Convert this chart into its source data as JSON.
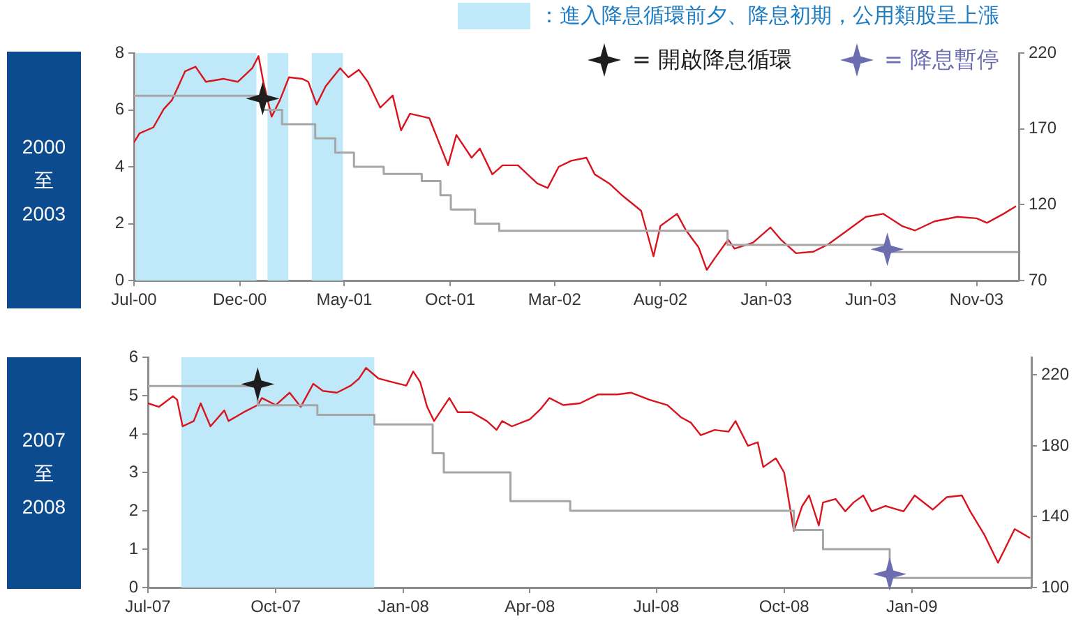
{
  "chart_data": [
    {
      "type": "line",
      "title": "2000 至 2003",
      "xlim": [
        "2000-07-01",
        "2004-01-01"
      ],
      "xticks": [
        {
          "value": "2000-07",
          "label": "Jul-00"
        },
        {
          "value": "2000-12",
          "label": "Dec-00"
        },
        {
          "value": "2001-05",
          "label": "May-01"
        },
        {
          "value": "2001-10",
          "label": "Oct-01"
        },
        {
          "value": "2002-03",
          "label": "Mar-02"
        },
        {
          "value": "2002-08",
          "label": "Aug-02"
        },
        {
          "value": "2003-01",
          "label": "Jan-03"
        },
        {
          "value": "2003-06",
          "label": "Jun-03"
        },
        {
          "value": "2003-11",
          "label": "Nov-03"
        }
      ],
      "ylim": [
        0,
        8
      ],
      "yticks": [
        0,
        2,
        4,
        6,
        8
      ],
      "y2lim": [
        70,
        220
      ],
      "y2ticks": [
        70,
        120,
        170,
        220
      ],
      "legend": "top right",
      "bands": [
        {
          "axis": "x",
          "from": "2000-07-04",
          "to": "2000-12-25",
          "color": "#bfe9f8",
          "label": "：進入降息循環前夕、降息初期，公用類股呈上漲"
        },
        {
          "axis": "x",
          "from": "2001-01-10",
          "to": "2001-02-09",
          "color": "#bfe9f8"
        },
        {
          "axis": "x",
          "from": "2001-03-15",
          "to": "2001-04-29",
          "color": "#bfe9f8"
        }
      ],
      "series": [
        {
          "type": "step",
          "color": "#a6a6a6",
          "x": [
            "2000-07-01",
            "2001-01-03",
            "2001-01-31",
            "2001-03-20",
            "2001-04-18",
            "2001-05-15",
            "2001-06-27",
            "2001-08-21",
            "2001-09-17",
            "2001-10-02",
            "2001-11-06",
            "2001-12-11",
            "2002-11-06",
            "2003-06-25",
            "2003-12-31"
          ],
          "values": [
            6.5,
            6.0,
            5.5,
            5.0,
            4.5,
            4.0,
            3.75,
            3.5,
            3.0,
            2.5,
            2.0,
            1.75,
            1.25,
            1.0,
            1.0
          ]
        },
        {
          "type": "line",
          "color": "#d9141e",
          "axis": "y2",
          "x": [
            "2000-07-01",
            "2000-07-09",
            "2000-07-29",
            "2000-08-13",
            "2000-08-25",
            "2000-09-13",
            "2000-09-28",
            "2000-10-13",
            "2000-11-07",
            "2000-11-28",
            "2000-12-19",
            "2000-12-28",
            "2001-01-04",
            "2001-01-16",
            "2001-01-28",
            "2001-02-10",
            "2001-03-01",
            "2001-03-10",
            "2001-03-22",
            "2001-04-04",
            "2001-04-25",
            "2001-05-07",
            "2001-05-22",
            "2001-06-04",
            "2001-06-22",
            "2001-07-10",
            "2001-07-22",
            "2001-08-04",
            "2001-09-01",
            "2001-09-28",
            "2001-10-10",
            "2001-11-01",
            "2001-11-13",
            "2001-12-01",
            "2001-12-16",
            "2002-01-07",
            "2002-02-04",
            "2002-02-19",
            "2002-03-07",
            "2002-03-25",
            "2002-04-16",
            "2002-04-28",
            "2002-05-19",
            "2002-06-07",
            "2002-07-04",
            "2002-07-22",
            "2002-08-01",
            "2002-08-25",
            "2002-09-07",
            "2002-09-25",
            "2002-10-07",
            "2002-10-19",
            "2002-11-07",
            "2002-11-16",
            "2002-12-13",
            "2003-01-07",
            "2003-01-22",
            "2003-02-13",
            "2003-03-10",
            "2003-04-01",
            "2003-04-25",
            "2003-05-25",
            "2003-06-19",
            "2003-07-16",
            "2003-08-04",
            "2003-09-01",
            "2003-10-04",
            "2003-11-01",
            "2003-11-16",
            "2003-12-10",
            "2003-12-28"
          ],
          "values": [
            161,
            167,
            171,
            183,
            189,
            208,
            211,
            201,
            203,
            201,
            210,
            218,
            201,
            178,
            189,
            204,
            203,
            201,
            186,
            198,
            210,
            204,
            209,
            201,
            184,
            192,
            169,
            180,
            177,
            146,
            166,
            151,
            157,
            140,
            146,
            146,
            134,
            131,
            145,
            149,
            151,
            140,
            134,
            126,
            116,
            86,
            106,
            114,
            103,
            92,
            77,
            85,
            97,
            91,
            95,
            105,
            97,
            88,
            89,
            94,
            102,
            112,
            114,
            106,
            103,
            109,
            112,
            111,
            108,
            114,
            119
          ]
        },
        {
          "type": "scatter",
          "name": "= 開啟降息循環",
          "color": "#1e1e1e",
          "marker": "star",
          "x": [
            "2001-01-03"
          ],
          "values": [
            6.4
          ]
        },
        {
          "type": "scatter",
          "name": "= 降息暫停",
          "color": "#6c6cb0",
          "marker": "star",
          "x": [
            "2003-06-25"
          ],
          "values": [
            1.1
          ]
        }
      ]
    },
    {
      "type": "line",
      "title": "2007 至 2008",
      "xlim": [
        "2007-07-01",
        "2009-03-28"
      ],
      "xticks": [
        {
          "value": "2007-07",
          "label": "Jul-07"
        },
        {
          "value": "2007-10",
          "label": "Oct-07"
        },
        {
          "value": "2008-01",
          "label": "Jan-08"
        },
        {
          "value": "2008-04",
          "label": "Apr-08"
        },
        {
          "value": "2008-07",
          "label": "Jul-08"
        },
        {
          "value": "2008-10",
          "label": "Oct-08"
        },
        {
          "value": "2009-01",
          "label": "Jan-09"
        }
      ],
      "ylim": [
        0,
        6
      ],
      "yticks": [
        0,
        1,
        2,
        3,
        4,
        5,
        6
      ],
      "y2lim": [
        100,
        230
      ],
      "y2ticks": [
        100,
        140,
        180,
        220
      ],
      "bands": [
        {
          "axis": "x",
          "from": "2007-07-25",
          "to": "2007-12-11",
          "color": "#bfe9f8"
        }
      ],
      "series": [
        {
          "type": "step",
          "color": "#a6a6a6",
          "x": [
            "2007-07-01",
            "2007-09-18",
            "2007-10-31",
            "2007-12-11",
            "2008-01-22",
            "2008-01-30",
            "2008-03-18",
            "2008-04-30",
            "2008-10-08",
            "2008-10-29",
            "2008-12-16",
            "2009-03-28"
          ],
          "values": [
            5.25,
            4.75,
            4.5,
            4.25,
            3.5,
            3.0,
            2.25,
            2.0,
            1.5,
            1.0,
            0.25,
            0.25
          ]
        },
        {
          "type": "line",
          "color": "#d9141e",
          "axis": "y2",
          "x": [
            "2007-07-01",
            "2007-07-09",
            "2007-07-19",
            "2007-07-22",
            "2007-07-26",
            "2007-08-03",
            "2007-08-08",
            "2007-08-15",
            "2007-08-25",
            "2007-08-28",
            "2007-09-08",
            "2007-09-18",
            "2007-09-21",
            "2007-10-01",
            "2007-10-11",
            "2007-10-19",
            "2007-10-28",
            "2007-11-04",
            "2007-11-14",
            "2007-11-24",
            "2007-11-30",
            "2007-12-05",
            "2007-12-14",
            "2007-12-24",
            "2008-01-03",
            "2008-01-08",
            "2008-01-13",
            "2008-01-18",
            "2008-01-23",
            "2008-02-03",
            "2008-02-09",
            "2008-02-19",
            "2008-03-01",
            "2008-03-08",
            "2008-03-12",
            "2008-03-19",
            "2008-04-01",
            "2008-04-09",
            "2008-04-15",
            "2008-04-25",
            "2008-05-07",
            "2008-05-20",
            "2008-06-03",
            "2008-06-13",
            "2008-06-26",
            "2008-07-09",
            "2008-07-19",
            "2008-07-26",
            "2008-08-02",
            "2008-08-12",
            "2008-08-22",
            "2008-08-27",
            "2008-09-05",
            "2008-09-12",
            "2008-09-16",
            "2008-09-25",
            "2008-10-01",
            "2008-10-08",
            "2008-10-14",
            "2008-10-19",
            "2008-10-26",
            "2008-10-29",
            "2008-11-07",
            "2008-11-14",
            "2008-11-20",
            "2008-11-27",
            "2008-12-03",
            "2008-12-13",
            "2008-12-26",
            "2009-01-03",
            "2009-01-16",
            "2009-01-26",
            "2009-02-06",
            "2009-02-12",
            "2009-02-22",
            "2009-03-04",
            "2009-03-16",
            "2009-03-27"
          ],
          "values": [
            204,
            202,
            208,
            206,
            191,
            194,
            204,
            191,
            200,
            194,
            199,
            203,
            207,
            203,
            210,
            202,
            215,
            211,
            210,
            214,
            218,
            224,
            218,
            216,
            214,
            222,
            216,
            202,
            194,
            207,
            199,
            199,
            194,
            189,
            194,
            191,
            195,
            201,
            207,
            203,
            204,
            209,
            209,
            210,
            206,
            203,
            196,
            193,
            186,
            189,
            188,
            194,
            180,
            182,
            168,
            173,
            165,
            132,
            146,
            152,
            135,
            148,
            150,
            143,
            148,
            152,
            143,
            146,
            143,
            152,
            144,
            151,
            152,
            143,
            130,
            114,
            133,
            128
          ]
        },
        {
          "type": "scatter",
          "color": "#1e1e1e",
          "marker": "star",
          "x": [
            "2007-09-18"
          ],
          "values": [
            5.3
          ]
        },
        {
          "type": "scatter",
          "color": "#6c6cb0",
          "marker": "star",
          "x": [
            "2008-12-16"
          ],
          "values": [
            0.35
          ]
        }
      ]
    }
  ]
}
